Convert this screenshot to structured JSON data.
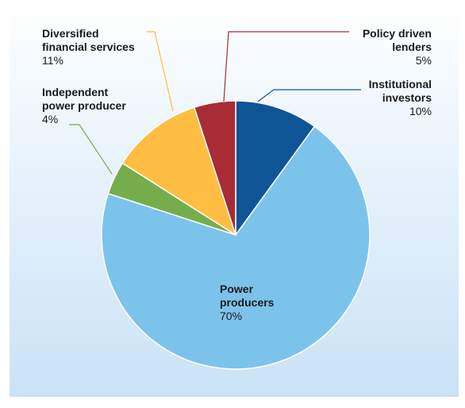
{
  "chart_data": {
    "type": "pie",
    "title": "",
    "slices": [
      {
        "name": "Institutional\ninvestors",
        "value": 10,
        "label": "10%",
        "color": "#0f5596"
      },
      {
        "name": "Power\nproducers",
        "value": 70,
        "label": "70%",
        "color": "#7cc3eb"
      },
      {
        "name": "Independent\npower producer",
        "value": 4,
        "label": "4%",
        "color": "#76ad4c"
      },
      {
        "name": "Diversified\nfinancial services",
        "value": 11,
        "label": "11%",
        "color": "#ffbd44"
      },
      {
        "name": "Policy driven\nlenders",
        "value": 5,
        "label": "5%",
        "color": "#a82b36"
      }
    ],
    "leader_colors": {
      "institutional": "#0f5596",
      "independent": "#76ad4c",
      "diversified": "#ffbd44",
      "policy": "#a82b36"
    },
    "background_gradient": [
      "#ffffff",
      "#c9e2f6"
    ]
  }
}
